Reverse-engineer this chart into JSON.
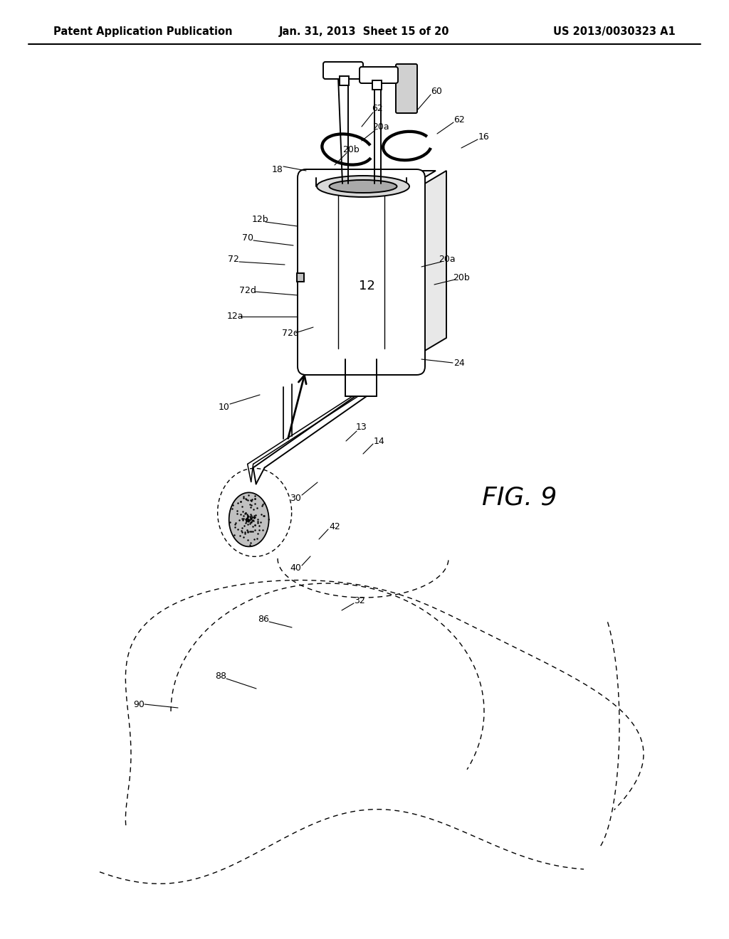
{
  "bg_color": "#ffffff",
  "line_color": "#000000",
  "header_left": "Patent Application Publication",
  "header_mid": "Jan. 31, 2013  Sheet 15 of 20",
  "header_right": "US 2013/0030323 A1",
  "fig_label": "FIG. 9",
  "annotation_fontsize": 9,
  "header_fontsize": 10.5,
  "fig9_fontsize": 26
}
